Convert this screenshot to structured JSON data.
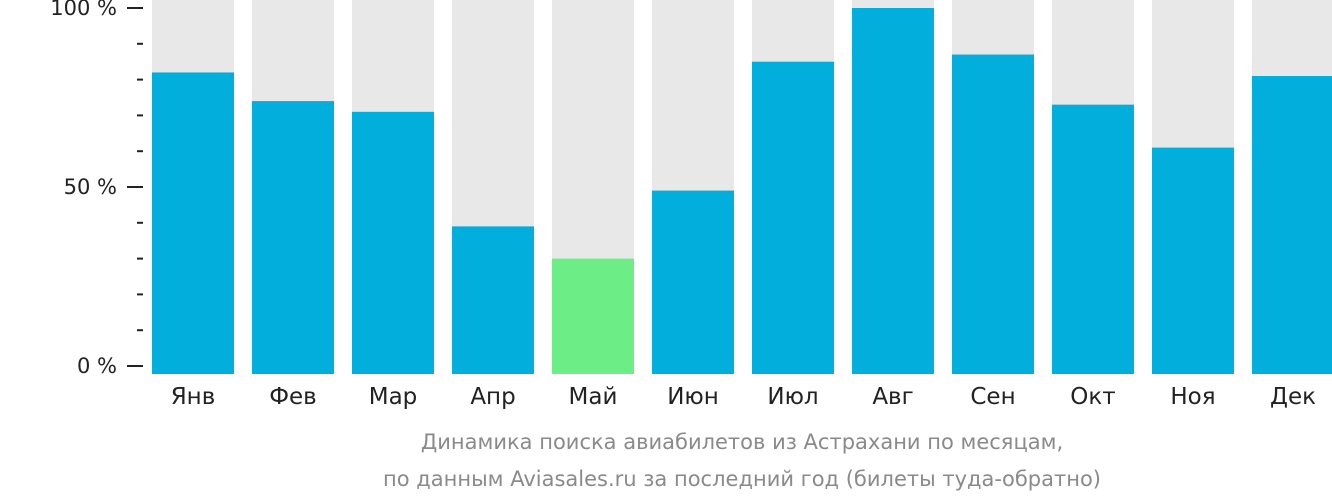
{
  "chart_data": {
    "type": "bar",
    "categories": [
      "Янв",
      "Фев",
      "Мар",
      "Апр",
      "Май",
      "Июн",
      "Июл",
      "Авг",
      "Сен",
      "Окт",
      "Ноя",
      "Дек"
    ],
    "values": [
      82,
      74,
      71,
      39,
      30,
      49,
      85,
      100,
      87,
      73,
      61,
      81
    ],
    "highlight_index": 4,
    "ylim": [
      0,
      100
    ],
    "yticks": [
      {
        "value": 100,
        "label": "100 %"
      },
      {
        "value": 50,
        "label": "50 %"
      },
      {
        "value": 0,
        "label": "0 %"
      }
    ],
    "minor_tick_step": 10,
    "caption_line1": "Динамика поиска авиабилетов из Астрахани по месяцам,",
    "caption_line2": "по данным Aviasales.ru за последний год (билеты туда-обратно)",
    "colors": {
      "bar": "#02afdc",
      "highlight": "#6ded86",
      "background_column": "#e8e8e9",
      "axis": "#222222"
    }
  }
}
